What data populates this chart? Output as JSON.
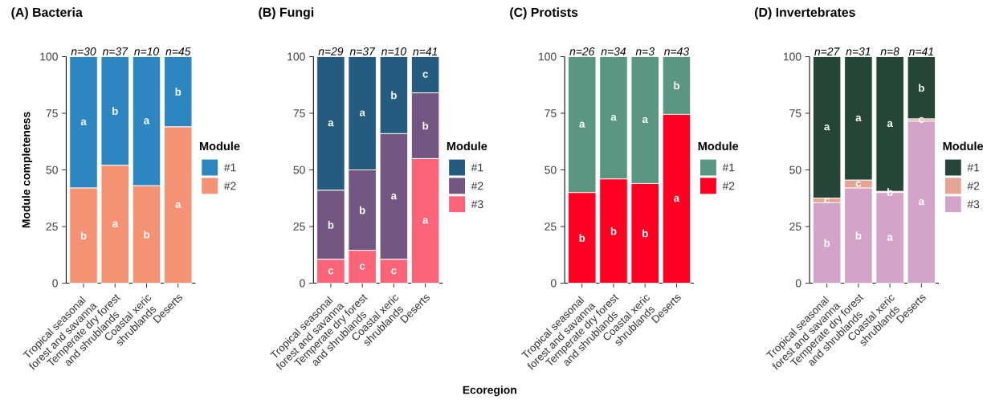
{
  "chart_data": [
    {
      "type": "bar",
      "stacked": true,
      "title": "(A) Bacteria",
      "ylabel": "Module completeness",
      "legend_title": "Module",
      "legend": "right",
      "categories": [
        "Tropical seasonal forest and savanna",
        "Temperate dry forest and shrublands",
        "Coastal xeric shrublands",
        "Deserts"
      ],
      "ylim": [
        0,
        100
      ],
      "yticks": [
        0,
        25,
        50,
        75,
        100
      ],
      "annotations": [
        {
          "text": "n=30",
          "x": "Tropical seasonal forest and savanna",
          "y": 100
        },
        {
          "text": "n=37",
          "x": "Temperate dry forest and shrublands",
          "y": 100
        },
        {
          "text": "n=10",
          "x": "Coastal xeric shrublands",
          "y": 100
        },
        {
          "text": "n=45",
          "x": "Deserts",
          "y": 100
        }
      ],
      "series": [
        {
          "name": "#2",
          "color": "#f69274",
          "values": [
            42,
            52,
            43,
            69
          ],
          "value_labels": [
            "b",
            "a",
            "b",
            "a"
          ]
        },
        {
          "name": "#1",
          "color": "#2e86c1",
          "values": [
            58,
            48,
            57,
            31
          ],
          "value_labels": [
            "a",
            "b",
            "a",
            "b"
          ]
        }
      ]
    },
    {
      "type": "bar",
      "stacked": true,
      "title": "(B) Fungi",
      "legend_title": "Module",
      "legend": "right",
      "categories": [
        "Tropical seasonal forest and savanna",
        "Temperate dry forest and shrublands",
        "Coastal xeric shrublands",
        "Deserts"
      ],
      "ylim": [
        0,
        100
      ],
      "yticks": [
        0,
        25,
        50,
        75,
        100
      ],
      "annotations": [
        {
          "text": "n=29",
          "x": "Tropical seasonal forest and savanna",
          "y": 100
        },
        {
          "text": "n=37",
          "x": "Temperate dry forest and shrublands",
          "y": 100
        },
        {
          "text": "n=10",
          "x": "Coastal xeric shrublands",
          "y": 100
        },
        {
          "text": "n=41",
          "x": "Deserts",
          "y": 100
        },
        "Ecoregion"
      ],
      "series": [
        {
          "name": "#3",
          "color": "#fb6478",
          "values": [
            10.5,
            14.5,
            10.5,
            55
          ],
          "value_labels": [
            "c",
            "c",
            "c",
            "a"
          ]
        },
        {
          "name": "#2",
          "color": "#735681",
          "values": [
            30.5,
            35.5,
            55.5,
            29
          ],
          "value_labels": [
            "b",
            "b",
            "a",
            "b"
          ]
        },
        {
          "name": "#1",
          "color": "#255b7e",
          "values": [
            59,
            50,
            34,
            16
          ],
          "value_labels": [
            "a",
            "a",
            "b",
            "c"
          ]
        }
      ]
    },
    {
      "type": "bar",
      "stacked": true,
      "title": "(C) Protists",
      "legend_title": "Module",
      "legend": "right",
      "categories": [
        "Tropical seasonal forest and savanna",
        "Temperate dry forest and shrublands",
        "Coastal xeric shrublands",
        "Deserts"
      ],
      "ylim": [
        0,
        100
      ],
      "yticks": [
        0,
        25,
        50,
        75,
        100
      ],
      "annotations": [
        {
          "text": "n=26",
          "x": "Tropical seasonal forest and savanna",
          "y": 100
        },
        {
          "text": "n=34",
          "x": "Temperate dry forest and shrublands",
          "y": 100
        },
        {
          "text": "n=3",
          "x": "Coastal xeric shrublands",
          "y": 100
        },
        {
          "text": "n=43",
          "x": "Deserts",
          "y": 100
        }
      ],
      "series": [
        {
          "name": "#2",
          "color": "#ff0022",
          "values": [
            40,
            46,
            44,
            74.5
          ],
          "value_labels": [
            "b",
            "b",
            "b",
            "a"
          ]
        },
        {
          "name": "#1",
          "color": "#5a9680",
          "values": [
            60,
            54,
            56,
            25.5
          ],
          "value_labels": [
            "a",
            "a",
            "a",
            "b"
          ]
        }
      ]
    },
    {
      "type": "bar",
      "stacked": true,
      "title": "(D) Invertebrates",
      "legend_title": "Module",
      "legend": "right",
      "categories": [
        "Tropical seasonal forest and savanna",
        "Temperate dry forest and shrublands",
        "Coastal xeric shrublands",
        "Deserts"
      ],
      "ylim": [
        0,
        100
      ],
      "yticks": [
        0,
        25,
        50,
        75,
        100
      ],
      "annotations": [
        {
          "text": "n=27",
          "x": "Tropical seasonal forest and savanna",
          "y": 100
        },
        {
          "text": "n=31",
          "x": "Temperate dry forest and shrublands",
          "y": 100
        },
        {
          "text": "n=8",
          "x": "Coastal xeric shrublands",
          "y": 100
        },
        {
          "text": "n=41",
          "x": "Deserts",
          "y": 100
        }
      ],
      "series": [
        {
          "name": "#3",
          "color": "#d4a4c8",
          "values": [
            35.5,
            42,
            40,
            71.5
          ],
          "value_labels": [
            "b",
            "b",
            "a",
            "a"
          ]
        },
        {
          "name": "#2",
          "color": "#e8a492",
          "values": [
            2,
            3.5,
            0.5,
            1
          ],
          "value_labels": [
            "c",
            "c",
            "b",
            "c"
          ]
        },
        {
          "name": "#1",
          "color": "#254536",
          "values": [
            62.5,
            54.5,
            59.5,
            27.5
          ],
          "value_labels": [
            "a",
            "a",
            "a",
            "b"
          ]
        }
      ]
    }
  ]
}
